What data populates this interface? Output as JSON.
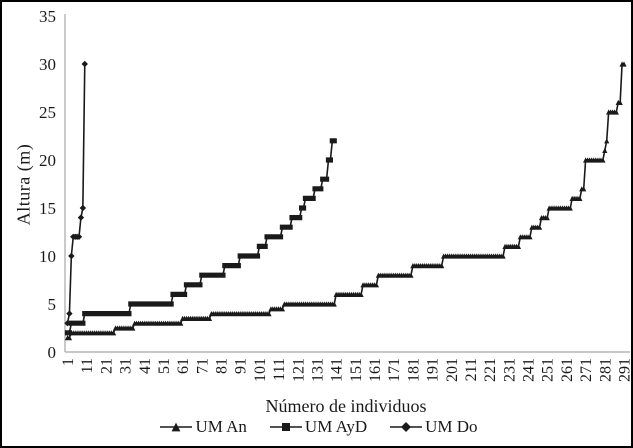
{
  "figure": {
    "background": "#ffffff",
    "frame_color": "#000000",
    "axis_color": "#a6a6a6",
    "series_color": "#1a1a1a"
  },
  "chart_data": {
    "type": "line",
    "title": "",
    "xlabel": "Número de individuos",
    "ylabel": "Altura (m)",
    "xlim": [
      1,
      291
    ],
    "ylim": [
      0,
      35
    ],
    "grid": false,
    "legend_position": "bottom",
    "y_ticks": [
      0,
      5,
      10,
      15,
      20,
      25,
      30,
      35
    ],
    "x_ticks": [
      1,
      11,
      21,
      31,
      41,
      51,
      61,
      71,
      81,
      91,
      101,
      111,
      121,
      131,
      141,
      151,
      161,
      171,
      181,
      191,
      201,
      211,
      221,
      231,
      241,
      251,
      261,
      271,
      281,
      291
    ],
    "series": [
      {
        "name": "UM An",
        "marker": "triangle",
        "color": "#1a1a1a",
        "runs": [
          [
            1.5,
            2
          ],
          [
            2,
            23
          ],
          [
            2.5,
            10
          ],
          [
            3,
            25
          ],
          [
            3.5,
            15
          ],
          [
            4,
            31
          ],
          [
            4.5,
            7
          ],
          [
            5,
            27
          ],
          [
            6,
            14
          ],
          [
            7,
            8
          ],
          [
            8,
            18
          ],
          [
            9,
            16
          ],
          [
            10,
            32
          ],
          [
            11,
            8
          ],
          [
            12,
            6
          ],
          [
            13,
            5
          ],
          [
            14,
            4
          ],
          [
            15,
            12
          ],
          [
            16,
            5
          ],
          [
            17,
            2
          ],
          [
            20,
            10
          ],
          [
            21,
            1
          ],
          [
            22,
            1
          ],
          [
            25,
            5
          ],
          [
            26,
            2
          ],
          [
            30,
            2
          ]
        ]
      },
      {
        "name": "UM AyD",
        "marker": "square",
        "color": "#1a1a1a",
        "runs": [
          [
            2,
            2
          ],
          [
            3,
            7
          ],
          [
            4,
            24
          ],
          [
            5,
            22
          ],
          [
            6,
            7
          ],
          [
            7,
            8
          ],
          [
            8,
            12
          ],
          [
            9,
            8
          ],
          [
            10,
            10
          ],
          [
            11,
            4
          ],
          [
            12,
            8
          ],
          [
            13,
            5
          ],
          [
            14,
            5
          ],
          [
            15,
            2
          ],
          [
            16,
            5
          ],
          [
            17,
            4
          ],
          [
            18,
            3
          ],
          [
            20,
            2
          ],
          [
            22,
            2
          ]
        ]
      },
      {
        "name": "UM Do",
        "marker": "diamond",
        "color": "#1a1a1a",
        "runs": [
          [
            3,
            1
          ],
          [
            4,
            1
          ],
          [
            10,
            1
          ],
          [
            12,
            4
          ],
          [
            14,
            1
          ],
          [
            15,
            1
          ],
          [
            30,
            1
          ]
        ]
      }
    ]
  },
  "legend": {
    "items": [
      {
        "label": "UM An",
        "marker": "triangle"
      },
      {
        "label": "UM AyD",
        "marker": "square"
      },
      {
        "label": "UM Do",
        "marker": "diamond"
      }
    ]
  }
}
